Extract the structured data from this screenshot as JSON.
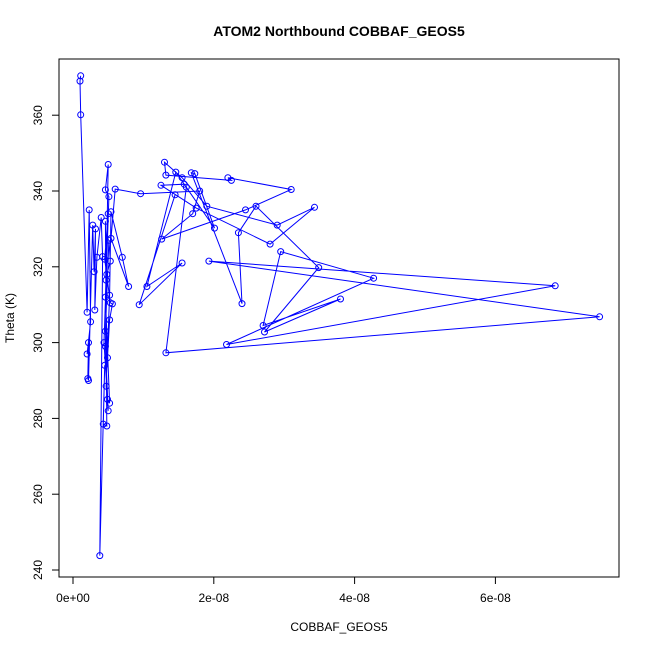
{
  "chart_data": {
    "type": "line",
    "title": "ATOM2 Northbound COBBAF_GEOS5",
    "xlabel": "COBBAF_GEOS5",
    "ylabel": "Theta (K)",
    "xlim": [
      0,
      7.5e-08
    ],
    "ylim": [
      240,
      370
    ],
    "x_ticks": [
      0,
      2e-08,
      4e-08,
      6e-08
    ],
    "x_tick_labels": [
      "0e+00",
      "2e-08",
      "4e-08",
      "6e-08"
    ],
    "y_ticks": [
      240,
      260,
      280,
      300,
      320,
      340,
      360
    ],
    "y_tick_labels": [
      "240",
      "260",
      "280",
      "300",
      "320",
      "340",
      "360"
    ],
    "grid": false,
    "series_color": "#0000ff",
    "series": [
      {
        "points": [
          [
            1.1e-09,
            370.4
          ],
          [
            1e-09,
            369.0
          ],
          [
            1.1e-09,
            360.1
          ],
          [
            2e-09,
            308.0
          ],
          [
            2.3e-09,
            335.0
          ],
          [
            2.5e-09,
            305.5
          ],
          [
            2e-09,
            297.0
          ],
          [
            2.2e-09,
            300.0
          ],
          [
            2.1e-09,
            290.5
          ],
          [
            2.2e-09,
            290.0
          ],
          [
            2.8e-09,
            331.0
          ],
          [
            3e-09,
            318.7
          ],
          [
            3.2e-09,
            330.0
          ],
          [
            3.1e-09,
            308.6
          ],
          [
            3.4e-09,
            322.5
          ],
          [
            4e-09,
            333.0
          ],
          [
            4.2e-09,
            322.7
          ],
          [
            3.8e-09,
            243.8
          ],
          [
            4.5e-09,
            294.0
          ],
          [
            4.3e-09,
            278.5
          ],
          [
            4.8e-09,
            278.0
          ],
          [
            4.6e-09,
            332.0
          ],
          [
            4.7e-09,
            316.5
          ],
          [
            5e-09,
            347.0
          ],
          [
            4.6e-09,
            340.3
          ],
          [
            5.1e-09,
            338.5
          ],
          [
            4.4e-09,
            300.0
          ],
          [
            4.9e-09,
            285.0
          ],
          [
            5.2e-09,
            284.0
          ],
          [
            4.6e-09,
            312.0
          ],
          [
            5e-09,
            334.0
          ],
          [
            4.5e-09,
            322.0
          ],
          [
            5.3e-09,
            310.5
          ],
          [
            5.6e-09,
            310.2
          ],
          [
            5.2e-09,
            306.0
          ],
          [
            4.9e-09,
            296.0
          ],
          [
            4.6e-09,
            303.0
          ],
          [
            5.1e-09,
            327.0
          ],
          [
            5.3e-09,
            321.5
          ],
          [
            4.8e-09,
            318.0
          ],
          [
            4.6e-09,
            299.0
          ],
          [
            5e-09,
            282.0
          ],
          [
            4.7e-09,
            288.5
          ],
          [
            5.2e-09,
            312.5
          ],
          [
            5.4e-09,
            334.5
          ],
          [
            7e-09,
            322.5
          ],
          [
            7.9e-09,
            314.8
          ],
          [
            5.4e-09,
            327.5
          ],
          [
            6e-09,
            340.5
          ],
          [
            9.6e-09,
            339.3
          ],
          [
            1.8e-08,
            340.0
          ],
          [
            1.7e-08,
            334.0
          ],
          [
            1.26e-08,
            327.3
          ],
          [
            2.45e-08,
            335.0
          ],
          [
            3.1e-08,
            340.4
          ],
          [
            2.2e-08,
            343.5
          ],
          [
            2.25e-08,
            342.8
          ],
          [
            1.32e-08,
            344.2
          ],
          [
            1.3e-08,
            347.6
          ],
          [
            1.55e-08,
            343.5
          ],
          [
            1.9e-08,
            336.0
          ],
          [
            2.9e-08,
            331.0
          ],
          [
            3.43e-08,
            335.7
          ],
          [
            2.8e-08,
            326.0
          ],
          [
            1.75e-08,
            335.5
          ],
          [
            1.25e-08,
            341.5
          ],
          [
            1.58e-08,
            341.8
          ],
          [
            2.01e-08,
            330.2
          ],
          [
            1.73e-08,
            344.6
          ],
          [
            1.68e-08,
            344.8
          ],
          [
            2.4e-08,
            310.3
          ],
          [
            2.35e-08,
            329.0
          ],
          [
            2.6e-08,
            336.0
          ],
          [
            3.49e-08,
            319.8
          ],
          [
            2.72e-08,
            302.8
          ],
          [
            3.8e-08,
            311.5
          ],
          [
            2.7e-08,
            304.5
          ],
          [
            2.95e-08,
            324.0
          ],
          [
            4.27e-08,
            317.0
          ],
          [
            2.18e-08,
            299.5
          ],
          [
            6.85e-08,
            315.0
          ],
          [
            1.93e-08,
            321.5
          ],
          [
            7.48e-08,
            306.8
          ],
          [
            1.32e-08,
            297.3
          ],
          [
            1.61e-08,
            341.0
          ],
          [
            1.46e-08,
            345.0
          ],
          [
            1.05e-08,
            314.8
          ],
          [
            1.55e-08,
            321.0
          ],
          [
            9.4e-09,
            310.0
          ],
          [
            1.45e-08,
            339.0
          ]
        ]
      }
    ]
  }
}
